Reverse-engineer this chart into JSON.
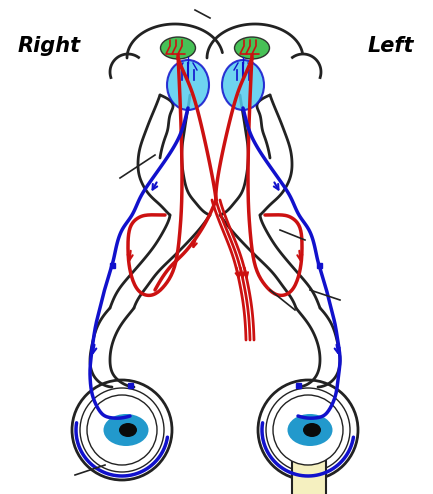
{
  "right_label": "Right",
  "left_label": "Left",
  "bg_color": "#ffffff",
  "outline_color": "#222222",
  "red_color": "#cc1111",
  "blue_color": "#1111cc",
  "cyan_color": "#55ccee",
  "green_color": "#33bb44",
  "eye_blue": "#2299cc",
  "pupil_color": "#0a0a0a",
  "spinal_color": "#f5f0c0",
  "figsize": [
    4.33,
    4.94
  ],
  "dpi": 100
}
